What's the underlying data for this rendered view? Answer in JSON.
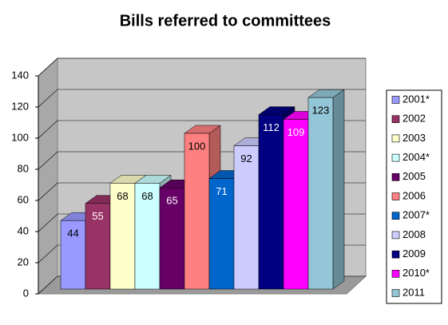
{
  "chart_data": {
    "type": "bar3d",
    "title": "Bills referred to committees",
    "categories": [
      "2001*",
      "2002",
      "2003",
      "2004*",
      "2005",
      "2006",
      "2007*",
      "2008",
      "2009",
      "2010*",
      "2011"
    ],
    "values": [
      44,
      55,
      68,
      68,
      65,
      100,
      71,
      92,
      112,
      109,
      123
    ],
    "colors": [
      "#9999ff",
      "#993366",
      "#ffffcc",
      "#ccffff",
      "#660066",
      "#ff8080",
      "#0066cc",
      "#ccccff",
      "#000080",
      "#ff00ff",
      "#93c6d6"
    ],
    "ylim": [
      0,
      140
    ],
    "yticks": [
      0,
      20,
      40,
      60,
      80,
      100,
      120,
      140
    ],
    "grid": true,
    "legend": "right"
  }
}
